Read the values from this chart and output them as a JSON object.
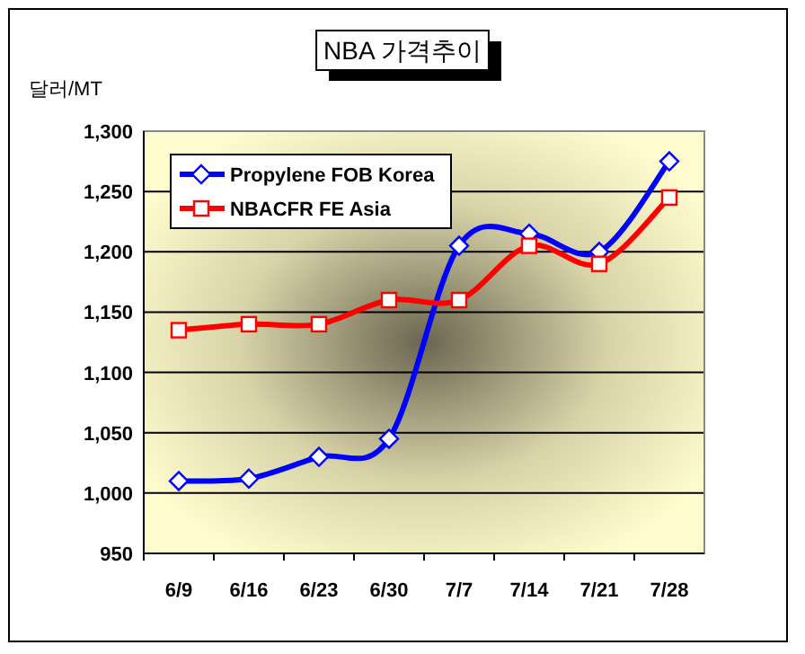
{
  "chart_data": {
    "type": "line",
    "title": "NBA 가격추이",
    "ylabel": "달러/MT",
    "categories": [
      "6/9",
      "6/16",
      "6/23",
      "6/30",
      "7/7",
      "7/14",
      "7/21",
      "7/28"
    ],
    "series": [
      {
        "name": "Propylene FOB Korea",
        "color": "#0000ff",
        "marker": "diamond",
        "values": [
          1010,
          1012,
          1030,
          1045,
          1205,
          1215,
          1200,
          1275
        ]
      },
      {
        "name": "NBACFR FE Asia",
        "color": "#ff0000",
        "marker": "square",
        "values": [
          1135,
          1140,
          1140,
          1160,
          1160,
          1205,
          1190,
          1245
        ]
      }
    ],
    "ylim": [
      950,
      1300
    ],
    "yticks": [
      {
        "value": 950,
        "label": "950"
      },
      {
        "value": 1000,
        "label": "1,000"
      },
      {
        "value": 1050,
        "label": "1,050"
      },
      {
        "value": 1100,
        "label": "1,100"
      },
      {
        "value": 1150,
        "label": "1,150"
      },
      {
        "value": 1200,
        "label": "1,200"
      },
      {
        "value": 1250,
        "label": "1,250"
      },
      {
        "value": 1300,
        "label": "1,300"
      }
    ],
    "grid": "y",
    "legend": "top left",
    "line_style": "solid"
  }
}
